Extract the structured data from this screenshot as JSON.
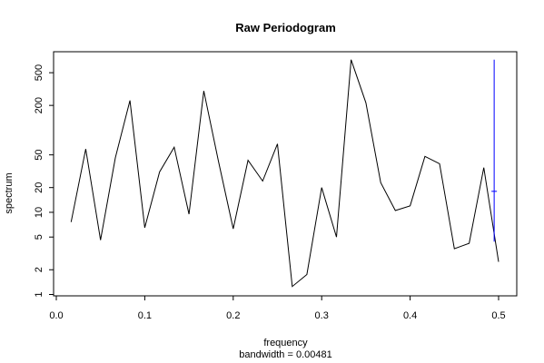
{
  "chart_data": {
    "type": "line",
    "title": "Raw Periodogram",
    "xlabel": "frequency",
    "sublabel": "bandwidth = 0.00481",
    "ylabel": "spectrum",
    "x_ticks": [
      0.0,
      0.1,
      0.2,
      0.3,
      0.4,
      0.5
    ],
    "x_tick_labels": [
      "0.0",
      "0.1",
      "0.2",
      "0.3",
      "0.4",
      "0.5"
    ],
    "y_scale": "log",
    "y_ticks": [
      1,
      2,
      5,
      10,
      20,
      50,
      200,
      500
    ],
    "y_tick_labels": [
      "1",
      "2",
      "5",
      "10",
      "20",
      "50",
      "200",
      "500"
    ],
    "xlim": [
      0.0,
      0.5
    ],
    "ylim": [
      1,
      900
    ],
    "series": [
      {
        "color": "#000000",
        "x": [
          0.0167,
          0.0333,
          0.05,
          0.0667,
          0.0833,
          0.1,
          0.1167,
          0.1333,
          0.15,
          0.1667,
          0.1833,
          0.2,
          0.2167,
          0.2333,
          0.25,
          0.2667,
          0.2833,
          0.3,
          0.3167,
          0.3333,
          0.35,
          0.3667,
          0.3833,
          0.4,
          0.4167,
          0.4333,
          0.45,
          0.4667,
          0.4833,
          0.5
        ],
        "values": [
          7.6,
          59,
          4.6,
          46,
          230,
          6.5,
          31,
          62,
          9.5,
          300,
          42,
          6.3,
          43,
          24,
          68,
          1.25,
          1.75,
          20,
          5,
          720,
          215,
          23,
          10.5,
          12,
          48,
          39,
          3.6,
          4.2,
          35,
          2.5
        ]
      }
    ],
    "ci_bar": {
      "color": "#0000ff",
      "x": 0.495,
      "lower": 4.4,
      "center": 18,
      "upper": 720
    }
  }
}
